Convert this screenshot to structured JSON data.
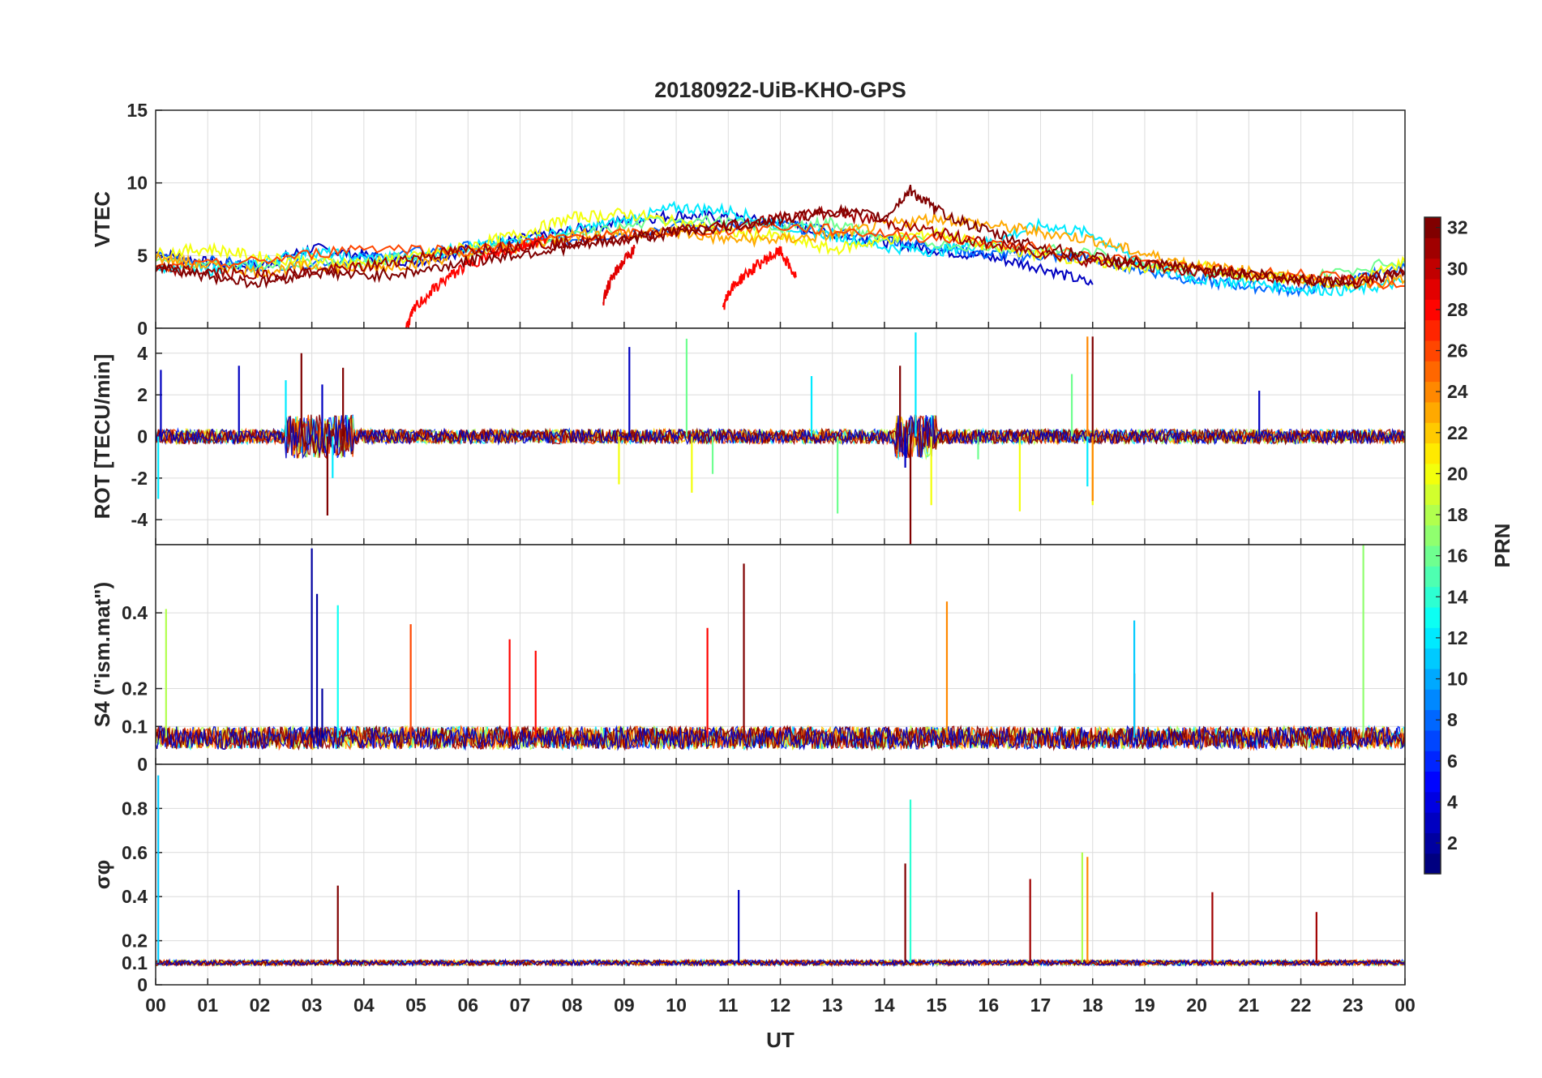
{
  "title": "20180922-UiB-KHO-GPS",
  "colors": {
    "axis": "#262626",
    "grid": "#dcdcdc",
    "colormap": "jet"
  },
  "chart_data": {
    "type": "line",
    "title": "20180922-UiB-KHO-GPS",
    "xlabel": "UT",
    "xlim": [
      0,
      24
    ],
    "x_tick_labels": [
      "00",
      "01",
      "02",
      "03",
      "04",
      "05",
      "06",
      "07",
      "08",
      "09",
      "10",
      "11",
      "12",
      "13",
      "14",
      "15",
      "16",
      "17",
      "18",
      "19",
      "20",
      "21",
      "22",
      "23",
      "00"
    ],
    "grid": true,
    "color_by": "PRN",
    "colorbar": {
      "label": "PRN",
      "range": [
        1,
        32
      ],
      "tick_labels": [
        "2",
        "4",
        "6",
        "8",
        "10",
        "12",
        "14",
        "16",
        "18",
        "20",
        "22",
        "24",
        "26",
        "28",
        "30",
        "32"
      ],
      "colormap": "jet",
      "placement": "right"
    },
    "panels": [
      {
        "ylabel": "VTEC",
        "ylim": [
          0,
          15
        ],
        "y_tick_labels": [
          "0",
          "5",
          "10",
          "15"
        ],
        "series": [
          {
            "prn": 3,
            "x": [
              0,
              1,
              2,
              3,
              4,
              5,
              6,
              7,
              8,
              9,
              10,
              11,
              12,
              13,
              14,
              15,
              16,
              17,
              18
            ],
            "y": [
              5.2,
              4.5,
              4.3,
              5.5,
              5,
              4.6,
              5.4,
              6.1,
              6.7,
              7.4,
              7.8,
              7.6,
              7.2,
              6.5,
              6,
              5.4,
              4.9,
              4.2,
              3
            ]
          },
          {
            "prn": 8,
            "x": [
              0,
              2,
              4,
              6,
              8,
              10,
              12,
              14,
              15,
              16,
              17,
              18,
              19,
              20,
              21,
              22,
              23,
              24
            ],
            "y": [
              5,
              4.3,
              4.8,
              5.6,
              6.1,
              7,
              7.1,
              6.1,
              5.6,
              5.1,
              5,
              4.8,
              4,
              3.3,
              2.9,
              2.6,
              3.3,
              4.2
            ]
          },
          {
            "prn": 12,
            "x": [
              0,
              1,
              2,
              3,
              4,
              5,
              6,
              7,
              8,
              9,
              10,
              11,
              12,
              13,
              14,
              15,
              16,
              17,
              18,
              19,
              20,
              21,
              22,
              23,
              24
            ],
            "y": [
              4.3,
              4,
              4.5,
              5.3,
              4.8,
              4.9,
              5.6,
              6,
              6.7,
              7.4,
              8.3,
              8.1,
              7.1,
              6.4,
              5.6,
              5.3,
              5.9,
              7.1,
              6.5,
              4.3,
              3.4,
              3.1,
              2.7,
              2.6,
              3.2
            ]
          },
          {
            "prn": 16,
            "x": [
              0,
              2,
              4,
              6,
              8,
              10,
              12,
              13,
              14,
              16,
              18,
              20,
              22,
              24
            ],
            "y": [
              4.6,
              4.2,
              4.6,
              5.3,
              6.3,
              7.6,
              6.9,
              7.3,
              6.1,
              5.6,
              5.2,
              3.9,
              3.4,
              4.7
            ]
          },
          {
            "prn": 20,
            "x": [
              0,
              1,
              2,
              3,
              4,
              5,
              6,
              7,
              8,
              9,
              10,
              11,
              12,
              13,
              14,
              15,
              16,
              17,
              18,
              19,
              20,
              21,
              22,
              23,
              24
            ],
            "y": [
              5.1,
              5.5,
              4.9,
              4.6,
              4.5,
              4.9,
              5.6,
              6.5,
              7.6,
              7.9,
              7.3,
              6.6,
              6.3,
              5.4,
              6.1,
              6.6,
              5.6,
              5.1,
              4.6,
              4.1,
              4.3,
              3.6,
              3.3,
              3.1,
              4.6
            ]
          },
          {
            "prn": 23,
            "x": [
              0,
              1,
              2,
              3,
              4,
              5,
              6,
              7,
              8,
              9,
              10,
              11,
              12,
              13,
              14,
              15,
              16,
              17,
              18,
              19,
              20,
              21,
              22,
              23,
              24
            ],
            "y": [
              4.9,
              4.3,
              3.9,
              4.3,
              4.1,
              4.5,
              5.1,
              5.6,
              6.4,
              6.6,
              6.6,
              6.1,
              6.1,
              6.4,
              7.1,
              7.6,
              7.1,
              6.6,
              6.1,
              5.1,
              4.3,
              3.9,
              3.4,
              3.1,
              3.3
            ]
          },
          {
            "prn": 26,
            "x": [
              0,
              2,
              4,
              6,
              8,
              10,
              12,
              14,
              16,
              18,
              20,
              22,
              24
            ],
            "y": [
              4.1,
              4.6,
              5.6,
              5.3,
              6.3,
              6.6,
              7,
              6.5,
              5.9,
              5,
              4.1,
              3.7,
              2.9
            ]
          },
          {
            "prn": 28,
            "x": [
              4.8,
              5,
              5.5,
              6,
              6.5,
              7,
              7.5
            ],
            "y": [
              0,
              1.5,
              3.2,
              4.4,
              5.1,
              5.6,
              6.2
            ]
          },
          {
            "prn": 29,
            "x": [
              8.6,
              8.7,
              8.9,
              9.2
            ],
            "y": [
              1.9,
              3,
              4.2,
              5.5
            ]
          },
          {
            "prn": 28,
            "x": [
              10.9,
              11,
              11.3,
              11.7,
              12,
              12.3
            ],
            "y": [
              1.2,
              2.5,
              3.6,
              4.7,
              5.3,
              3.5
            ]
          },
          {
            "prn": 31,
            "x": [
              0,
              1,
              2,
              3,
              4,
              5,
              6,
              7,
              8,
              9,
              10,
              11,
              12,
              13,
              14,
              15,
              16,
              17,
              18,
              19,
              20,
              21,
              22,
              23,
              24
            ],
            "y": [
              4,
              3.9,
              3.6,
              3.9,
              4.2,
              4.9,
              5.4,
              5.7,
              5.9,
              6.2,
              6.7,
              7.1,
              7.6,
              8,
              7.3,
              6.6,
              5.8,
              5.2,
              4.6,
              4.3,
              3.9,
              3.6,
              3.3,
              3.4,
              3.7
            ]
          },
          {
            "prn": 32,
            "x": [
              0,
              1,
              2,
              3,
              4,
              5,
              6,
              7,
              8,
              9,
              10,
              11,
              12,
              13,
              14,
              14.5,
              15,
              16,
              17,
              18,
              19,
              20,
              21,
              22,
              23,
              24
            ],
            "y": [
              4.3,
              3.6,
              3.1,
              3.9,
              3.6,
              3.9,
              4.6,
              5.1,
              5.6,
              6.1,
              6.6,
              7,
              7.5,
              8.1,
              7.6,
              9.5,
              8.1,
              6.6,
              5.6,
              4.9,
              4.4,
              4.1,
              3.8,
              3.4,
              3.1,
              3.9
            ]
          }
        ]
      },
      {
        "ylabel": "ROT [TECU/min]",
        "ylim": [
          -5.2,
          5.2
        ],
        "y_tick_labels": [
          "-4",
          "-2",
          "0",
          "2",
          "4"
        ],
        "series": [
          {
            "prn": 3,
            "x": [
              0.1,
              1.6,
              3.2,
              9.1,
              14.4,
              21.2
            ],
            "y": [
              3.2,
              3.4,
              2.5,
              4.3,
              -1.5,
              2.2
            ]
          },
          {
            "prn": 12,
            "x": [
              0.05,
              2.5,
              3.4,
              12.6,
              14.6,
              17.9
            ],
            "y": [
              -3,
              2.7,
              -2,
              2.9,
              5,
              -2.4
            ]
          },
          {
            "prn": 16,
            "x": [
              10.2,
              10.7,
              13.1,
              15.8,
              17.6
            ],
            "y": [
              4.7,
              -1.8,
              -3.7,
              -1.1,
              3
            ]
          },
          {
            "prn": 20,
            "x": [
              8.9,
              10.3,
              14.9,
              16.6,
              18.0
            ],
            "y": [
              -2.3,
              -2.7,
              -3.3,
              -3.6,
              -3.3
            ]
          },
          {
            "prn": 24,
            "x": [
              17.9,
              18.0
            ],
            "y": [
              4.8,
              -3.1
            ]
          },
          {
            "prn": 32,
            "x": [
              2.8,
              3.3,
              3.6,
              14.3,
              14.5,
              18.0
            ],
            "y": [
              4,
              -3.8,
              3.3,
              3.4,
              -5.2,
              4.8
            ]
          }
        ]
      },
      {
        "ylabel": "S4 (\"ism.mat\")",
        "ylim": [
          0,
          0.58
        ],
        "y_tick_labels": [
          "0",
          "0.1",
          "0.2",
          "0.4"
        ],
        "series": [
          {
            "prn": 2,
            "x": [
              3,
              3.1,
              3.2
            ],
            "y": [
              0.57,
              0.45,
              0.2
            ]
          },
          {
            "prn": 13,
            "x": [
              3.5
            ],
            "y": [
              0.42
            ]
          },
          {
            "prn": 18,
            "x": [
              0.2
            ],
            "y": [
              0.41
            ]
          },
          {
            "prn": 26,
            "x": [
              4.9
            ],
            "y": [
              0.37
            ]
          },
          {
            "prn": 28,
            "x": [
              6.8,
              7.3,
              10.6
            ],
            "y": [
              0.33,
              0.3,
              0.36
            ]
          },
          {
            "prn": 32,
            "x": [
              11.3,
              18.8
            ],
            "y": [
              0.53,
              0.24
            ]
          },
          {
            "prn": 24,
            "x": [
              15.2
            ],
            "y": [
              0.43
            ]
          },
          {
            "prn": 11,
            "x": [
              18.8
            ],
            "y": [
              0.38
            ]
          },
          {
            "prn": 17,
            "x": [
              23.2
            ],
            "y": [
              0.58
            ]
          }
        ]
      },
      {
        "ylabel": "σφ",
        "ylim": [
          0,
          1
        ],
        "y_tick_labels": [
          "0",
          "0.1",
          "0.2",
          "0.4",
          "0.6",
          "0.8"
        ],
        "series": [
          {
            "prn": 11,
            "x": [
              0.05
            ],
            "y": [
              0.95
            ]
          },
          {
            "prn": 14,
            "x": [
              14.5
            ],
            "y": [
              0.84
            ]
          },
          {
            "prn": 18,
            "x": [
              17.8
            ],
            "y": [
              0.6
            ]
          },
          {
            "prn": 24,
            "x": [
              17.9
            ],
            "y": [
              0.58
            ]
          },
          {
            "prn": 31,
            "x": [
              16.8,
              20.3,
              22.3
            ],
            "y": [
              0.48,
              0.42,
              0.33
            ]
          },
          {
            "prn": 32,
            "x": [
              3.5,
              14.4
            ],
            "y": [
              0.45,
              0.55
            ]
          },
          {
            "prn": 3,
            "x": [
              11.2
            ],
            "y": [
              0.43
            ]
          }
        ]
      }
    ]
  }
}
